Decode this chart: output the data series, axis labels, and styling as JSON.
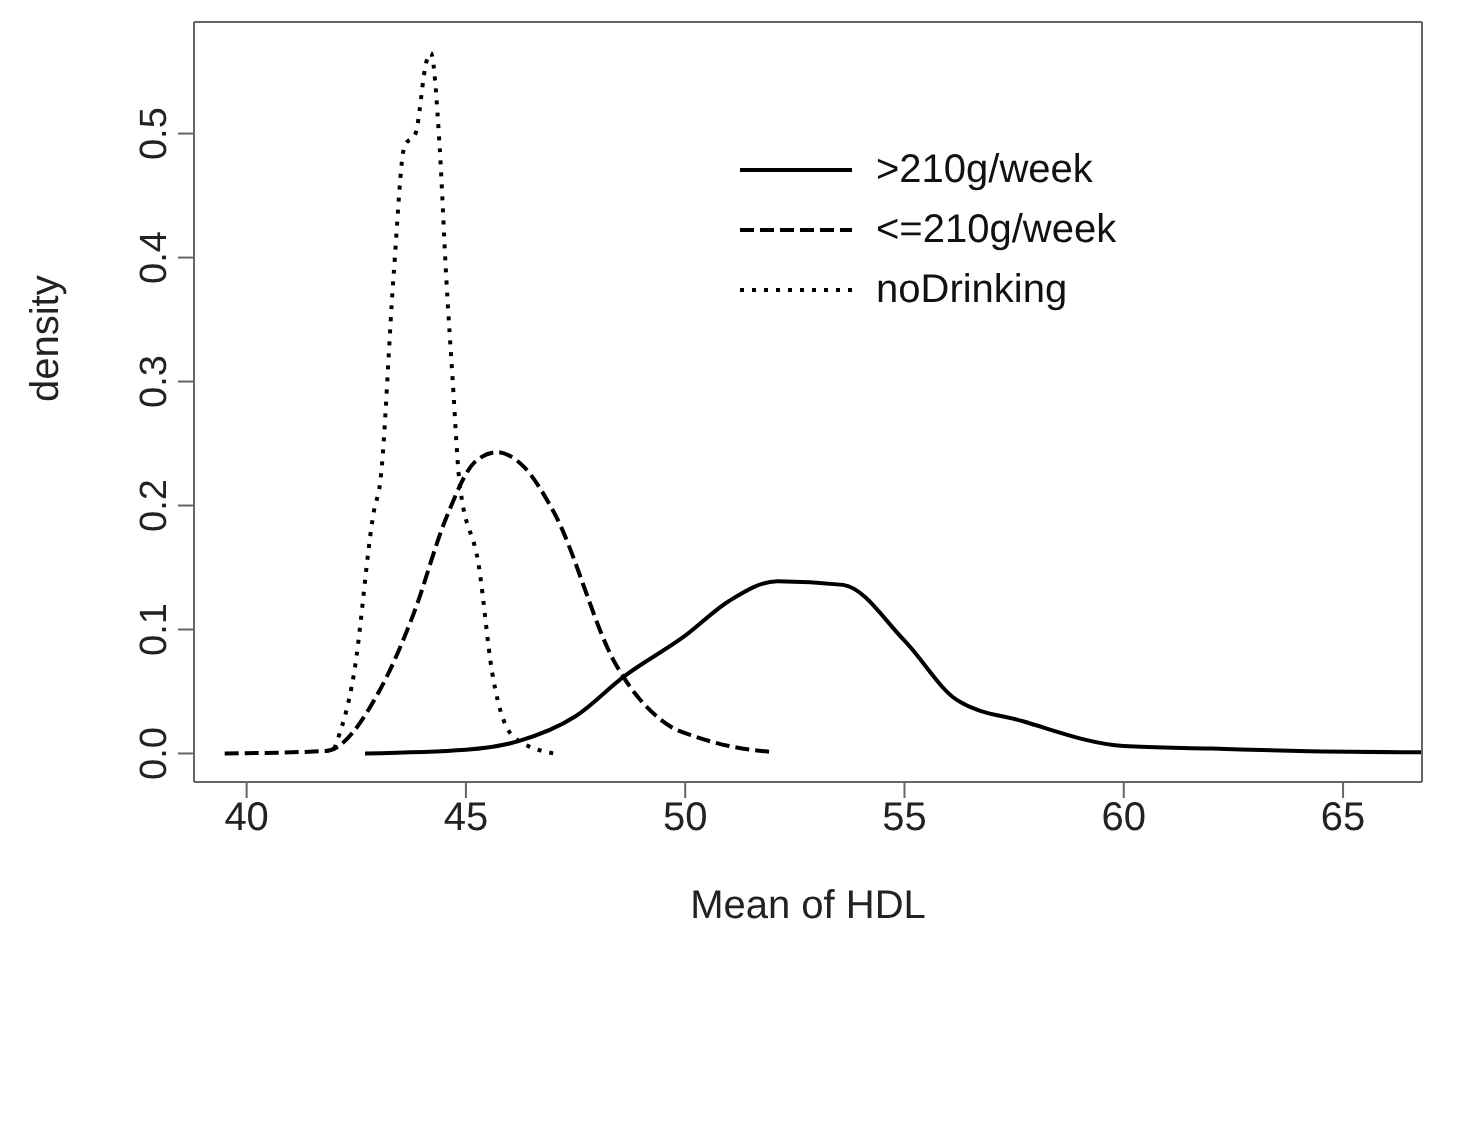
{
  "chart_data": {
    "type": "line",
    "xlabel": "Mean of HDL",
    "ylabel": "density",
    "xlim": [
      38.8,
      66.8
    ],
    "ylim": [
      -0.023,
      0.59
    ],
    "xticks": [
      40,
      45,
      50,
      55,
      60,
      65
    ],
    "yticks": [
      {
        "value": 0,
        "label": "0.0"
      },
      0.1,
      0.2,
      0.3,
      0.4,
      0.5
    ],
    "legend": "top right",
    "marker": "none",
    "series": [
      {
        "name": ">210g/week",
        "color": "#000000",
        "line_style": "solid",
        "x": [
          42.7,
          45,
          46.2,
          47.5,
          48.6,
          50,
          51,
          52.1,
          53.6,
          55,
          56.2,
          57.7,
          60,
          62,
          64,
          66.8
        ],
        "values": [
          0,
          0.003,
          0.01,
          0.03,
          0.062,
          0.095,
          0.123,
          0.139,
          0.136,
          0.091,
          0.043,
          0.026,
          0.006,
          0.004,
          0.002,
          0.001
        ]
      },
      {
        "name": "<=210g/week",
        "color": "#000000",
        "line_style": "dashed",
        "x": [
          39.5,
          41.8,
          43.05,
          43.8,
          44.55,
          45.2,
          45.7,
          46.3,
          47,
          48.4,
          49.7,
          50.2,
          51,
          52
        ],
        "values": [
          0,
          0.002,
          0.052,
          0.112,
          0.19,
          0.235,
          0.243,
          0.232,
          0.195,
          0.073,
          0.021,
          0.014,
          0.006,
          0.001
        ]
      },
      {
        "name": "noDrinking",
        "color": "#000000",
        "line_style": "dotted",
        "x": [
          42,
          42.45,
          42.9,
          43.05,
          43.35,
          43.6,
          43.85,
          44.1,
          44.2,
          44.4,
          44.55,
          44.7,
          44.85,
          45.3,
          45.6,
          46.1,
          47
        ],
        "values": [
          0.004,
          0.065,
          0.195,
          0.22,
          0.385,
          0.49,
          0.5,
          0.558,
          0.565,
          0.49,
          0.385,
          0.3,
          0.22,
          0.15,
          0.065,
          0.013,
          0
        ]
      }
    ]
  }
}
